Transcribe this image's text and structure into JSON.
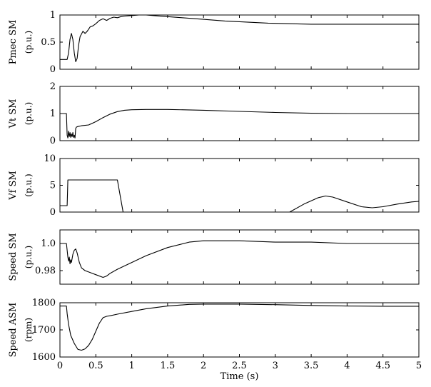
{
  "chart_data": [
    {
      "type": "line",
      "ylabel": "Pmec SM",
      "yunit": "(p.u.)",
      "xlim": [
        0,
        5
      ],
      "ylim": [
        0,
        1
      ],
      "yticks": [
        0,
        0.5,
        1
      ],
      "ytick_labels": [
        "0",
        "0.5",
        "1"
      ],
      "grid": false,
      "series": [
        {
          "x": [
            0,
            0.1,
            0.12,
            0.14,
            0.16,
            0.18,
            0.2,
            0.22,
            0.24,
            0.26,
            0.28,
            0.3,
            0.32,
            0.35,
            0.38,
            0.42,
            0.46,
            0.5,
            0.55,
            0.6,
            0.65,
            0.7,
            0.75,
            0.8,
            0.85,
            0.9,
            1.0,
            1.1,
            1.2,
            1.3,
            1.5,
            1.7,
            2.0,
            2.3,
            2.6,
            2.9,
            3.2,
            3.5,
            3.8,
            4.0,
            4.5,
            5.0
          ],
          "y": [
            0.18,
            0.18,
            0.3,
            0.55,
            0.66,
            0.55,
            0.3,
            0.14,
            0.2,
            0.45,
            0.6,
            0.65,
            0.7,
            0.66,
            0.7,
            0.78,
            0.8,
            0.84,
            0.9,
            0.93,
            0.9,
            0.94,
            0.96,
            0.95,
            0.97,
            0.98,
            0.99,
            1.0,
            1.0,
            0.99,
            0.97,
            0.95,
            0.92,
            0.89,
            0.87,
            0.85,
            0.84,
            0.83,
            0.83,
            0.83,
            0.83,
            0.83
          ]
        }
      ]
    },
    {
      "type": "line",
      "ylabel": "Vt SM",
      "yunit": "(p.u.)",
      "xlim": [
        0,
        5
      ],
      "ylim": [
        0,
        2
      ],
      "yticks": [
        0,
        1,
        2
      ],
      "ytick_labels": [
        "0",
        "1",
        "2"
      ],
      "grid": false,
      "series": [
        {
          "x": [
            0,
            0.09,
            0.1,
            0.11,
            0.12,
            0.13,
            0.14,
            0.15,
            0.16,
            0.17,
            0.18,
            0.19,
            0.2,
            0.21,
            0.22,
            0.23,
            0.25,
            0.3,
            0.4,
            0.5,
            0.6,
            0.7,
            0.8,
            0.9,
            1.0,
            1.2,
            1.5,
            2.0,
            2.5,
            3.0,
            3.5,
            4.0,
            4.5,
            5.0
          ],
          "y": [
            1.0,
            1.0,
            0.2,
            0.1,
            0.35,
            0.15,
            0.3,
            0.12,
            0.25,
            0.15,
            0.3,
            0.12,
            0.2,
            0.1,
            0.45,
            0.5,
            0.52,
            0.55,
            0.58,
            0.7,
            0.85,
            0.98,
            1.07,
            1.12,
            1.14,
            1.15,
            1.15,
            1.12,
            1.08,
            1.04,
            1.01,
            1.0,
            1.0,
            1.0
          ]
        }
      ]
    },
    {
      "type": "line",
      "ylabel": "Vf SM",
      "yunit": "(p.u.)",
      "xlim": [
        0,
        5
      ],
      "ylim": [
        0,
        10
      ],
      "yticks": [
        0,
        5,
        10
      ],
      "ytick_labels": [
        "0",
        "5",
        "10"
      ],
      "grid": false,
      "series": [
        {
          "x": [
            0,
            0.1,
            0.11,
            0.12,
            0.8,
            0.88,
            3.2,
            3.4,
            3.6,
            3.7,
            3.8,
            4.0,
            4.2,
            4.35,
            4.5,
            4.7,
            4.9,
            5.0
          ],
          "y": [
            1.2,
            1.2,
            6.0,
            6.0,
            6.0,
            0.0,
            0.0,
            1.5,
            2.7,
            3.0,
            2.8,
            1.9,
            1.0,
            0.8,
            1.0,
            1.5,
            1.9,
            2.0
          ]
        }
      ]
    },
    {
      "type": "line",
      "ylabel": "Speed  SM",
      "yunit": "(p.u.)",
      "xlim": [
        0,
        5
      ],
      "ylim": [
        0.97,
        1.01
      ],
      "yticks": [
        0.98,
        1.0
      ],
      "ytick_labels": [
        "0.98",
        "1.0"
      ],
      "grid": false,
      "series": [
        {
          "x": [
            0,
            0.09,
            0.1,
            0.11,
            0.12,
            0.13,
            0.14,
            0.15,
            0.16,
            0.18,
            0.2,
            0.22,
            0.24,
            0.27,
            0.3,
            0.35,
            0.4,
            0.5,
            0.6,
            0.65,
            0.7,
            0.8,
            1.0,
            1.2,
            1.5,
            1.8,
            2.0,
            2.2,
            2.5,
            3.0,
            3.5,
            4.0,
            4.5,
            5.0
          ],
          "y": [
            1.0,
            1.0,
            0.995,
            0.99,
            0.987,
            0.99,
            0.985,
            0.988,
            0.986,
            0.992,
            0.995,
            0.996,
            0.993,
            0.986,
            0.982,
            0.98,
            0.979,
            0.977,
            0.975,
            0.976,
            0.978,
            0.981,
            0.986,
            0.991,
            0.997,
            1.001,
            1.002,
            1.002,
            1.002,
            1.001,
            1.001,
            1.0,
            1.0,
            1.0
          ]
        }
      ]
    },
    {
      "type": "line",
      "ylabel": "Speed  ASM",
      "yunit": "(rpm)",
      "xlabel": "Time (s)",
      "xlim": [
        0,
        5
      ],
      "ylim": [
        1600,
        1800
      ],
      "yticks": [
        1600,
        1700,
        1800
      ],
      "ytick_labels": [
        "1600",
        "1700",
        "1800"
      ],
      "xticks": [
        0,
        0.5,
        1,
        1.5,
        2,
        2.5,
        3,
        3.5,
        4,
        4.5,
        5
      ],
      "xtick_labels": [
        "0",
        "0.5",
        "1",
        "1.5",
        "2",
        "2.5",
        "3",
        "3.5",
        "4",
        "4.5",
        "5"
      ],
      "grid": false,
      "series": [
        {
          "x": [
            0,
            0.09,
            0.1,
            0.12,
            0.15,
            0.2,
            0.25,
            0.3,
            0.35,
            0.4,
            0.45,
            0.5,
            0.55,
            0.6,
            0.65,
            0.7,
            0.8,
            1.0,
            1.2,
            1.5,
            1.8,
            2.0,
            2.2,
            2.5,
            3.0,
            3.5,
            4.0,
            4.5,
            5.0
          ],
          "y": [
            1788,
            1788,
            1760,
            1720,
            1680,
            1650,
            1628,
            1625,
            1630,
            1643,
            1665,
            1695,
            1725,
            1745,
            1750,
            1752,
            1758,
            1768,
            1778,
            1788,
            1794,
            1795,
            1795,
            1795,
            1793,
            1790,
            1788,
            1787,
            1787
          ]
        }
      ]
    }
  ]
}
